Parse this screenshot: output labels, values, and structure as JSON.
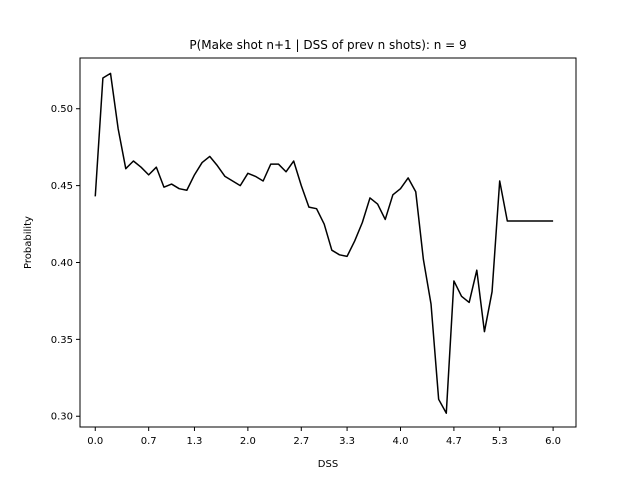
{
  "chart_data": {
    "type": "line",
    "title": "P(Make shot n+1 | DSS of prev n shots): n = 9",
    "xlabel": "DSS",
    "ylabel": "Probability",
    "xlim": [
      -0.2,
      6.3
    ],
    "ylim": [
      0.293,
      0.533
    ],
    "xticks": [
      0.0,
      0.7,
      1.3,
      2.0,
      2.7,
      3.3,
      4.0,
      4.7,
      5.3,
      6.0
    ],
    "xtick_labels": [
      "0.0",
      "0.7",
      "1.3",
      "2.0",
      "2.7",
      "3.3",
      "4.0",
      "4.7",
      "5.3",
      "6.0"
    ],
    "yticks": [
      0.3,
      0.35,
      0.4,
      0.45,
      0.5
    ],
    "ytick_labels": [
      "0.30",
      "0.35",
      "0.40",
      "0.45",
      "0.50"
    ],
    "grid": false,
    "series": [
      {
        "color": "#000000",
        "x": [
          0.0,
          0.1,
          0.2,
          0.3,
          0.4,
          0.5,
          0.6,
          0.7,
          0.8,
          0.9,
          1.0,
          1.1,
          1.2,
          1.3,
          1.4,
          1.5,
          1.6,
          1.7,
          1.8,
          1.9,
          2.0,
          2.1,
          2.2,
          2.3,
          2.4,
          2.5,
          2.6,
          2.7,
          2.8,
          2.9,
          3.0,
          3.1,
          3.2,
          3.3,
          3.4,
          3.5,
          3.6,
          3.7,
          3.8,
          3.9,
          4.0,
          4.1,
          4.2,
          4.3,
          4.4,
          4.5,
          4.6,
          4.7,
          4.8,
          4.9,
          5.0,
          5.1,
          5.2,
          5.3,
          5.4,
          5.5,
          5.6,
          5.7,
          5.8,
          5.9,
          6.0
        ],
        "y": [
          0.443,
          0.52,
          0.523,
          0.487,
          0.461,
          0.466,
          0.462,
          0.457,
          0.462,
          0.449,
          0.451,
          0.448,
          0.447,
          0.457,
          0.465,
          0.469,
          0.463,
          0.456,
          0.453,
          0.45,
          0.458,
          0.456,
          0.453,
          0.464,
          0.464,
          0.459,
          0.466,
          0.45,
          0.436,
          0.435,
          0.425,
          0.408,
          0.405,
          0.404,
          0.414,
          0.426,
          0.442,
          0.438,
          0.428,
          0.444,
          0.448,
          0.455,
          0.446,
          0.402,
          0.373,
          0.311,
          0.302,
          0.388,
          0.378,
          0.374,
          0.395,
          0.355,
          0.381,
          0.453,
          0.427,
          0.427,
          0.427,
          0.427,
          0.427,
          0.427,
          0.427
        ]
      }
    ]
  }
}
